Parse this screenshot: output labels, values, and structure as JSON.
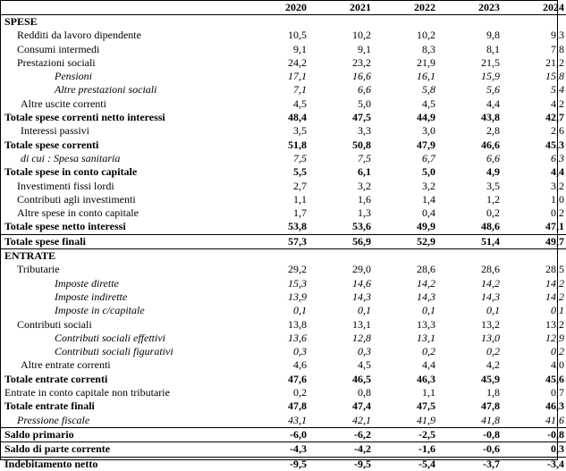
{
  "years": [
    "2020",
    "2021",
    "2022",
    "2023",
    "2024"
  ],
  "sections": {
    "spese": "SPESE",
    "entrate": "ENTRATE"
  },
  "rows": [
    {
      "label": "Redditi da lavoro dipendente",
      "values": [
        "10,5",
        "10,2",
        "10,2",
        "9,8",
        "9,3"
      ]
    },
    {
      "label": "Consumi intermedi",
      "values": [
        "9,1",
        "9,1",
        "8,3",
        "8,1",
        "7,8"
      ]
    },
    {
      "label": "Prestazioni sociali",
      "values": [
        "24,2",
        "23,2",
        "21,9",
        "21,5",
        "21,2"
      ]
    },
    {
      "label": "Pensioni",
      "values": [
        "17,1",
        "16,6",
        "16,1",
        "15,9",
        "15,8"
      ]
    },
    {
      "label": "Altre prestazioni sociali",
      "values": [
        "7,1",
        "6,6",
        "5,8",
        "5,6",
        "5,4"
      ]
    },
    {
      "label": "Altre uscite correnti",
      "values": [
        "4,5",
        "5,0",
        "4,5",
        "4,4",
        "4,2"
      ]
    },
    {
      "label": "Totale spese correnti netto interessi",
      "values": [
        "48,4",
        "47,5",
        "44,9",
        "43,8",
        "42,7"
      ]
    },
    {
      "label": "Interessi passivi",
      "values": [
        "3,5",
        "3,3",
        "3,0",
        "2,8",
        "2,6"
      ]
    },
    {
      "label": "Totale spese correnti",
      "values": [
        "51,8",
        "50,8",
        "47,9",
        "46,6",
        "45,3"
      ]
    },
    {
      "label": "di cui : Spesa sanitaria",
      "values": [
        "7,5",
        "7,5",
        "6,7",
        "6,6",
        "6,3"
      ]
    },
    {
      "label": "Totale spese in conto capitale",
      "values": [
        "5,5",
        "6,1",
        "5,0",
        "4,9",
        "4,4"
      ]
    },
    {
      "label": "Investimenti fissi lordi",
      "values": [
        "2,7",
        "3,2",
        "3,2",
        "3,5",
        "3,2"
      ]
    },
    {
      "label": "Contributi agli investimenti",
      "values": [
        "1,1",
        "1,6",
        "1,4",
        "1,2",
        "1,0"
      ]
    },
    {
      "label": "Altre spese in conto capitale",
      "values": [
        "1,7",
        "1,3",
        "0,4",
        "0,2",
        "0,2"
      ]
    },
    {
      "label": "Totale spese netto interessi",
      "values": [
        "53,8",
        "53,6",
        "49,9",
        "48,6",
        "47,1"
      ]
    },
    {
      "label": "Totale spese finali",
      "values": [
        "57,3",
        "56,9",
        "52,9",
        "51,4",
        "49,7"
      ]
    },
    {
      "label": "Tributarie",
      "values": [
        "29,2",
        "29,0",
        "28,6",
        "28,6",
        "28,5"
      ]
    },
    {
      "label": "Imposte dirette",
      "values": [
        "15,3",
        "14,6",
        "14,2",
        "14,2",
        "14,2"
      ]
    },
    {
      "label": "Imposte indirette",
      "values": [
        "13,9",
        "14,3",
        "14,3",
        "14,3",
        "14,2"
      ]
    },
    {
      "label": "Imposte in c/capitale",
      "values": [
        "0,1",
        "0,1",
        "0,1",
        "0,1",
        "0,1"
      ]
    },
    {
      "label": "Contributi sociali",
      "values": [
        "13,8",
        "13,1",
        "13,3",
        "13,2",
        "13,2"
      ]
    },
    {
      "label": "Contributi sociali effettivi",
      "values": [
        "13,6",
        "12,8",
        "13,1",
        "13,0",
        "12,9"
      ]
    },
    {
      "label": "Contributi sociali figurativi",
      "values": [
        "0,3",
        "0,3",
        "0,2",
        "0,2",
        "0,2"
      ]
    },
    {
      "label": "Altre entrate correnti",
      "values": [
        "4,6",
        "4,5",
        "4,4",
        "4,2",
        "4,0"
      ]
    },
    {
      "label": "Totale entrate correnti",
      "values": [
        "47,6",
        "46,5",
        "46,3",
        "45,9",
        "45,6"
      ]
    },
    {
      "label": "Entrate in conto capitale non tributarie",
      "values": [
        "0,2",
        "0,8",
        "1,1",
        "1,8",
        "0,7"
      ]
    },
    {
      "label": "Totale entrate finali",
      "values": [
        "47,8",
        "47,4",
        "47,5",
        "47,8",
        "46,3"
      ]
    },
    {
      "label": "Pressione fiscale",
      "values": [
        "43,1",
        "42,1",
        "41,9",
        "41,8",
        "41,6"
      ]
    },
    {
      "label": "Saldo primario",
      "values": [
        "-6,0",
        "-6,2",
        "-2,5",
        "-0,8",
        "-0,8"
      ]
    },
    {
      "label": "Saldo di parte corrente",
      "values": [
        "-4,3",
        "-4,2",
        "-1,6",
        "-0,6",
        "0,3"
      ]
    },
    {
      "label": "Indebitamento netto",
      "values": [
        "-9,5",
        "-9,5",
        "-5,4",
        "-3,7",
        "-3,4"
      ]
    }
  ]
}
